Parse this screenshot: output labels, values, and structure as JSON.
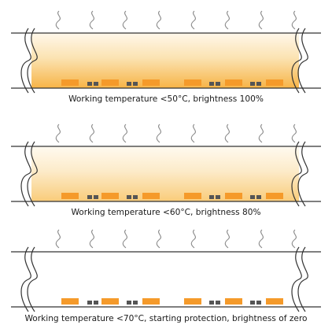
{
  "panels": [
    {
      "caption": "Working temperature <50°C, brightness 100%",
      "brightness_percent": 100,
      "glow_color": "#f8bf60"
    },
    {
      "caption": "Working temperature <60°C, brightness 80%",
      "brightness_percent": 80,
      "glow_color": "#f8cf78"
    },
    {
      "caption": "Working temperature <70°C, starting protection, brightness of zero",
      "brightness_percent": 0,
      "glow_color": "#ffffff"
    }
  ],
  "colors": {
    "led": "#f59a2a",
    "chip": "#555555",
    "outline": "#333333",
    "heat_wave": "#888888"
  },
  "icons": {
    "heat": "heat-wave-icon",
    "break": "break-mark-icon"
  }
}
